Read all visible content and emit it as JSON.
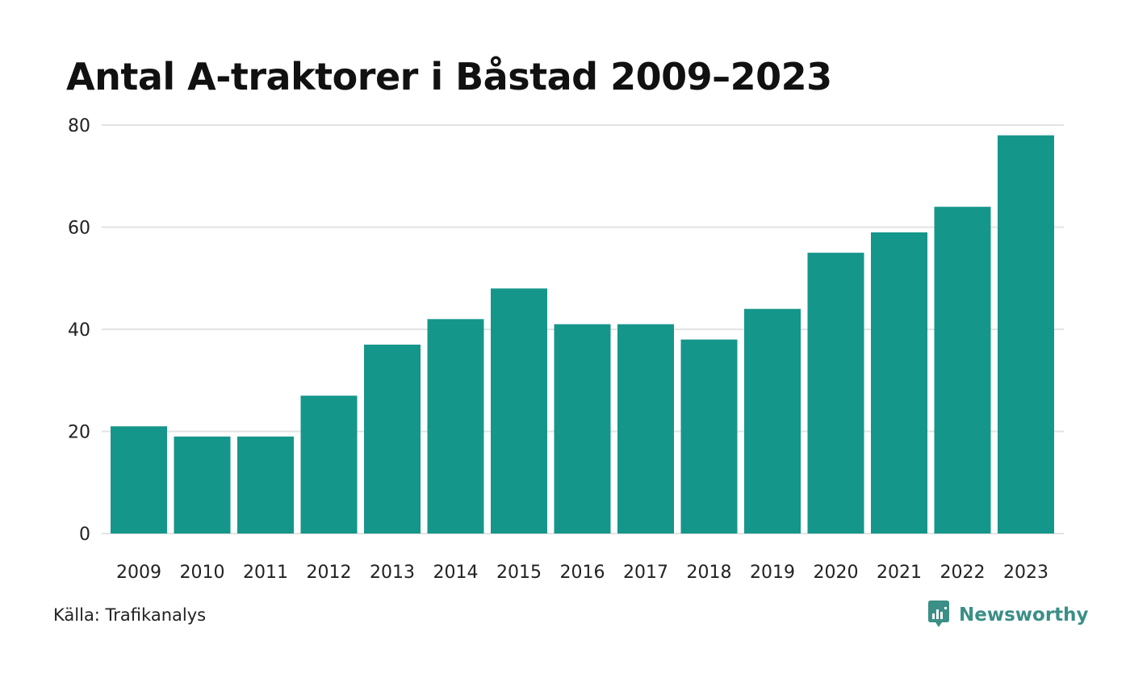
{
  "chart_data": {
    "type": "bar",
    "title": "Antal A-traktorer i Båstad 2009–2023",
    "categories": [
      "2009",
      "2010",
      "2011",
      "2012",
      "2013",
      "2014",
      "2015",
      "2016",
      "2017",
      "2018",
      "2019",
      "2020",
      "2021",
      "2022",
      "2023"
    ],
    "values": [
      21,
      19,
      19,
      27,
      37,
      42,
      48,
      41,
      41,
      38,
      44,
      55,
      59,
      64,
      78
    ],
    "xlabel": "",
    "ylabel": "",
    "ylim": [
      0,
      80
    ],
    "yticks": [
      0,
      20,
      40,
      60,
      80
    ],
    "grid": true,
    "bar_color": "#15968a",
    "grid_color": "#e3e3e6"
  },
  "footer": {
    "source": "Källa: Trafikanalys",
    "brand": "Newsworthy",
    "brand_icon": "newsworthy-logo-icon",
    "brand_color": "#3a8f86"
  }
}
